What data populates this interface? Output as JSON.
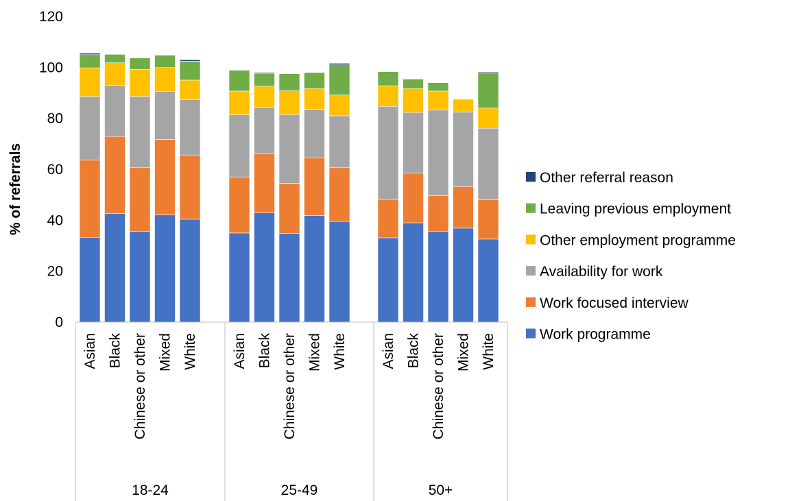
{
  "chart_data": {
    "type": "bar",
    "stacked": true,
    "title": "",
    "xlabel": "",
    "ylabel": "% of referrals",
    "ylim": [
      0,
      120
    ],
    "yticks": [
      "0",
      "20",
      "40",
      "60",
      "80",
      "100",
      "120"
    ],
    "grid": false,
    "legend_position": "right",
    "groups": [
      {
        "label": "18-24",
        "categories": [
          "Asian",
          "Black",
          "Chinese or other",
          "Mixed",
          "White"
        ]
      },
      {
        "label": "25-49",
        "categories": [
          "Asian",
          "Black",
          "Chinese or other",
          "Mixed",
          "White"
        ]
      },
      {
        "label": "50+",
        "categories": [
          "Asian",
          "Black",
          "Chinese or other",
          "Mixed",
          "White"
        ]
      }
    ],
    "series": [
      {
        "name": "Work programme",
        "color": "#4472C4",
        "values": [
          33.3,
          42.6,
          35.6,
          42.1,
          40.4,
          35.0,
          42.9,
          34.8,
          41.8,
          39.5,
          33.1,
          39.0,
          35.7,
          36.9,
          32.6
        ]
      },
      {
        "name": "Work focused interview",
        "color": "#ED7D31",
        "values": [
          30.3,
          30.3,
          25.0,
          29.6,
          25.2,
          22.0,
          23.2,
          19.7,
          22.7,
          21.1,
          15.1,
          19.5,
          13.9,
          16.3,
          15.4
        ]
      },
      {
        "name": "Availability for work",
        "color": "#A5A5A5",
        "values": [
          25.0,
          20.0,
          28.0,
          18.9,
          21.7,
          24.4,
          18.3,
          27.0,
          19.0,
          20.4,
          36.5,
          23.8,
          33.7,
          29.3,
          28.1
        ]
      },
      {
        "name": "Other employment programme",
        "color": "#FFC000",
        "values": [
          11.2,
          8.9,
          10.6,
          9.3,
          7.7,
          9.3,
          8.2,
          9.3,
          8.2,
          8.2,
          8.1,
          9.4,
          7.4,
          5.0,
          7.9
        ]
      },
      {
        "name": "Leaving previous employment",
        "color": "#70AD47",
        "values": [
          5.2,
          3.3,
          4.5,
          4.9,
          7.4,
          8.2,
          5.0,
          6.7,
          6.3,
          11.8,
          5.5,
          3.7,
          3.3,
          0.0,
          13.5
        ]
      },
      {
        "name": "Other referral reason",
        "color": "#264478",
        "values": [
          0.6,
          0.0,
          0.0,
          0.0,
          0.6,
          0.0,
          0.4,
          0.0,
          0.0,
          0.6,
          0.0,
          0.0,
          0.0,
          0.0,
          0.6
        ]
      }
    ]
  }
}
